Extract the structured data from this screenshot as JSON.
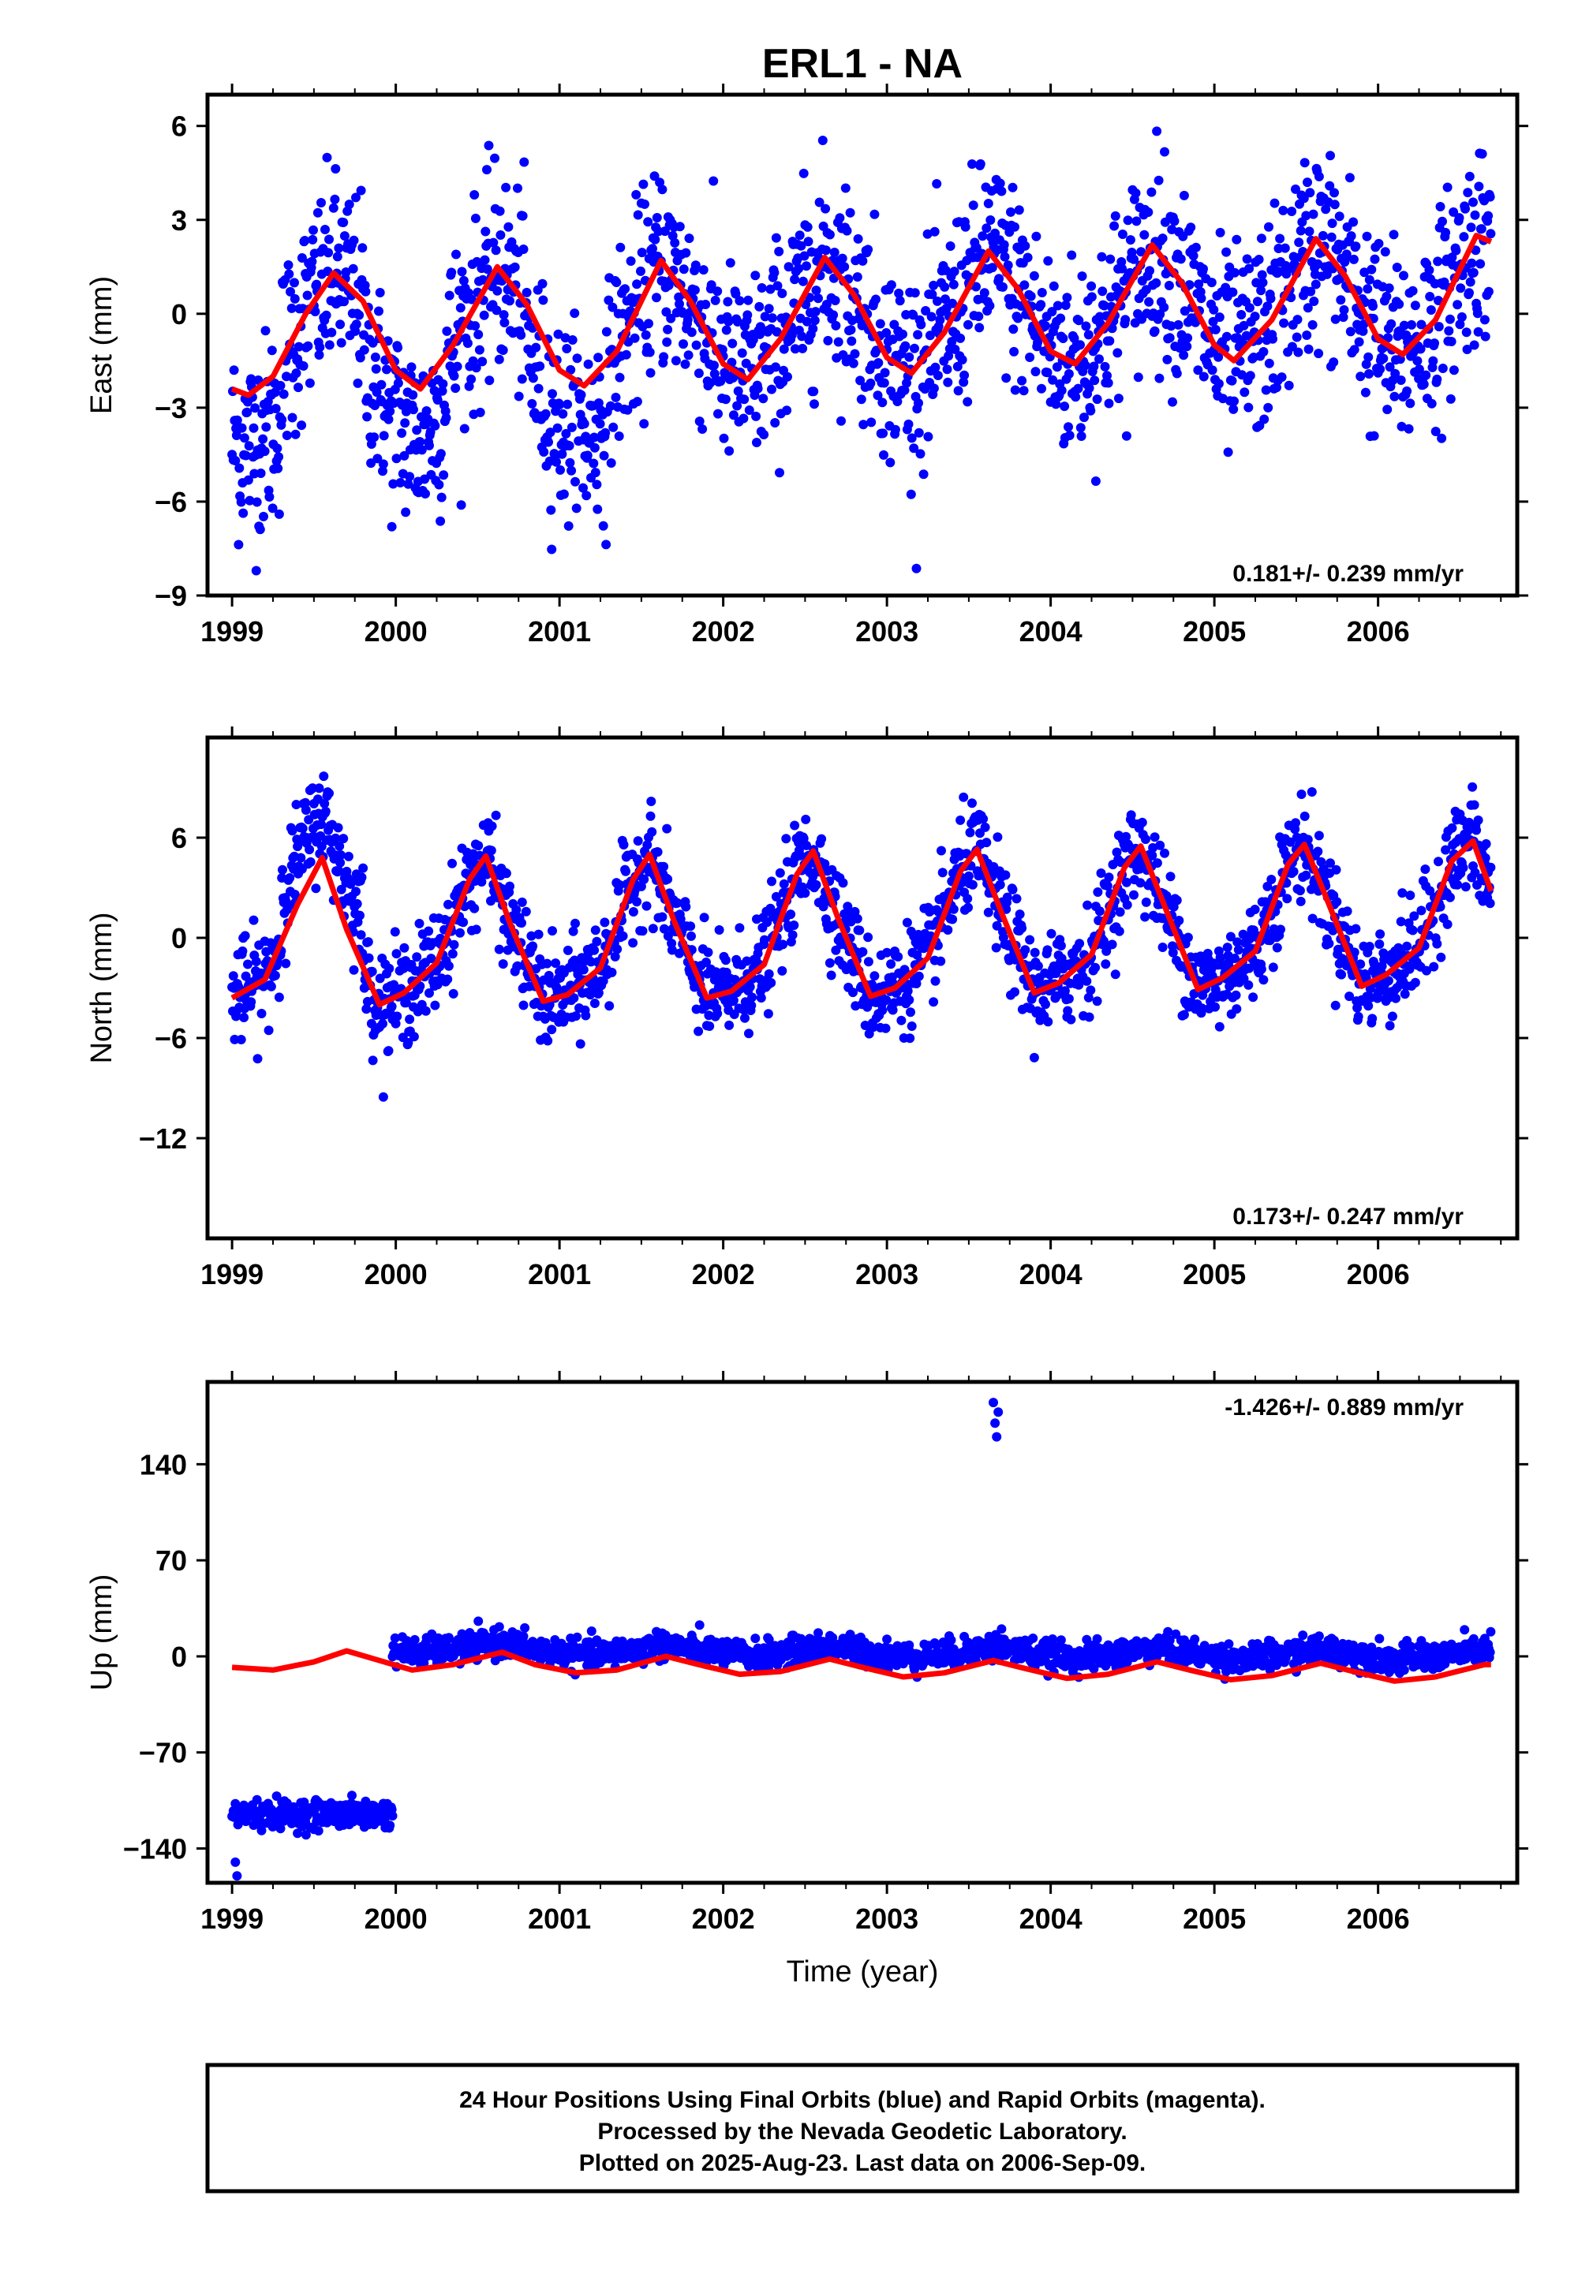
{
  "figure": {
    "title": "ERL1 - NA",
    "footer": {
      "lines": [
        "24 Hour Positions Using Final Orbits (blue) and Rapid Orbits (magenta).",
        "Processed by the Nevada Geodetic Laboratory.",
        "Plotted on 2025-Aug-23. Last data on 2006-Sep-09."
      ]
    },
    "colors": {
      "data_points": "#0000ff",
      "model_fit": "#ff0000",
      "frame": "#000000"
    }
  },
  "chart_data": [
    {
      "type": "scatter",
      "id": "east",
      "ylabel": "East (mm)",
      "xlabel": "",
      "xlim": [
        1998.85,
        2006.85
      ],
      "ylim": [
        -9,
        7
      ],
      "xticks": [
        "1999",
        "2000",
        "2001",
        "2002",
        "2003",
        "2004",
        "2005",
        "2006"
      ],
      "yticks": [
        "6",
        "3",
        "0",
        "−3",
        "−6",
        "−9"
      ],
      "ytick_values": [
        6,
        3,
        0,
        -3,
        -6,
        -9
      ],
      "rate": "0.181+/- 0.239 mm/yr",
      "rate_position": "bottom-right",
      "series": [
        {
          "kind": "points",
          "x_start": 1999.0,
          "x_end": 2006.69,
          "amplitude": 2.1,
          "phase_peak": 0.62,
          "noise": 1.6,
          "offset_pre_2001_2": -1.0
        },
        {
          "kind": "model",
          "x_start": 1999.0,
          "x_end": 2006.69,
          "model_points": [
            [
              1999.0,
              -2.4
            ],
            [
              1999.1,
              -2.6
            ],
            [
              1999.25,
              -2.0
            ],
            [
              1999.45,
              0.0
            ],
            [
              1999.62,
              1.3
            ],
            [
              1999.8,
              0.4
            ],
            [
              2000.0,
              -1.8
            ],
            [
              2000.15,
              -2.4
            ],
            [
              2000.35,
              -1.0
            ],
            [
              2000.62,
              1.5
            ],
            [
              2000.8,
              0.3
            ],
            [
              2001.0,
              -1.8
            ],
            [
              2001.15,
              -2.3
            ],
            [
              2001.35,
              -1.2
            ],
            [
              2001.62,
              1.7
            ],
            [
              2001.8,
              0.4
            ],
            [
              2002.0,
              -1.6
            ],
            [
              2002.15,
              -2.1
            ],
            [
              2002.35,
              -0.8
            ],
            [
              2002.62,
              1.8
            ],
            [
              2002.8,
              0.6
            ],
            [
              2003.0,
              -1.4
            ],
            [
              2003.15,
              -1.9
            ],
            [
              2003.35,
              -0.6
            ],
            [
              2003.62,
              2.0
            ],
            [
              2003.8,
              0.8
            ],
            [
              2004.0,
              -1.2
            ],
            [
              2004.15,
              -1.6
            ],
            [
              2004.35,
              -0.3
            ],
            [
              2004.62,
              2.2
            ],
            [
              2004.8,
              1.0
            ],
            [
              2005.0,
              -1.0
            ],
            [
              2005.12,
              -1.5
            ],
            [
              2005.35,
              -0.2
            ],
            [
              2005.62,
              2.4
            ],
            [
              2005.8,
              1.2
            ],
            [
              2006.0,
              -0.8
            ],
            [
              2006.15,
              -1.3
            ],
            [
              2006.35,
              -0.2
            ],
            [
              2006.6,
              2.5
            ],
            [
              2006.69,
              2.3
            ]
          ]
        }
      ]
    },
    {
      "type": "scatter",
      "id": "north",
      "ylabel": "North (mm)",
      "xlabel": "",
      "xlim": [
        1998.85,
        2006.85
      ],
      "ylim": [
        -18,
        12
      ],
      "xticks": [
        "1999",
        "2000",
        "2001",
        "2002",
        "2003",
        "2004",
        "2005",
        "2006"
      ],
      "yticks": [
        "6",
        "0",
        "−6",
        "−12"
      ],
      "ytick_values": [
        6,
        0,
        -6,
        -12
      ],
      "rate": "0.173+/- 0.247 mm/yr",
      "rate_position": "bottom-right",
      "series": [
        {
          "kind": "points",
          "x_start": 1999.0,
          "x_end": 2006.69,
          "amplitude": 4.5,
          "phase_peak": 0.55,
          "noise": 1.5
        },
        {
          "kind": "model",
          "x_start": 1999.0,
          "x_end": 2006.69,
          "model_points": [
            [
              1999.0,
              -3.6
            ],
            [
              1999.2,
              -2.5
            ],
            [
              1999.4,
              2.0
            ],
            [
              1999.55,
              4.8
            ],
            [
              1999.7,
              0.5
            ],
            [
              1999.9,
              -4.0
            ],
            [
              2000.05,
              -3.3
            ],
            [
              2000.25,
              -1.5
            ],
            [
              2000.45,
              3.5
            ],
            [
              2000.55,
              4.9
            ],
            [
              2000.7,
              0.8
            ],
            [
              2000.9,
              -3.8
            ],
            [
              2001.05,
              -3.4
            ],
            [
              2001.25,
              -1.8
            ],
            [
              2001.45,
              3.5
            ],
            [
              2001.55,
              5.0
            ],
            [
              2001.7,
              1.0
            ],
            [
              2001.9,
              -3.6
            ],
            [
              2002.05,
              -3.2
            ],
            [
              2002.25,
              -1.6
            ],
            [
              2002.45,
              3.8
            ],
            [
              2002.55,
              5.2
            ],
            [
              2002.7,
              1.2
            ],
            [
              2002.9,
              -3.5
            ],
            [
              2003.05,
              -3.0
            ],
            [
              2003.25,
              -1.2
            ],
            [
              2003.45,
              4.0
            ],
            [
              2003.55,
              5.3
            ],
            [
              2003.7,
              1.5
            ],
            [
              2003.9,
              -3.3
            ],
            [
              2004.05,
              -2.7
            ],
            [
              2004.25,
              -1.0
            ],
            [
              2004.45,
              4.2
            ],
            [
              2004.55,
              5.5
            ],
            [
              2004.7,
              1.8
            ],
            [
              2004.9,
              -3.1
            ],
            [
              2005.05,
              -2.4
            ],
            [
              2005.25,
              -0.8
            ],
            [
              2005.45,
              4.4
            ],
            [
              2005.55,
              5.6
            ],
            [
              2005.7,
              2.0
            ],
            [
              2005.9,
              -2.9
            ],
            [
              2006.05,
              -2.2
            ],
            [
              2006.25,
              -0.6
            ],
            [
              2006.45,
              4.6
            ],
            [
              2006.58,
              5.8
            ],
            [
              2006.69,
              2.8
            ]
          ]
        }
      ]
    },
    {
      "type": "scatter",
      "id": "up",
      "ylabel": "Up (mm)",
      "xlabel": "Time (year)",
      "xlim": [
        1998.85,
        2006.85
      ],
      "ylim": [
        -165,
        200
      ],
      "xticks": [
        "1999",
        "2000",
        "2001",
        "2002",
        "2003",
        "2004",
        "2005",
        "2006"
      ],
      "yticks": [
        "140",
        "70",
        "0",
        "−70",
        "−140"
      ],
      "ytick_values": [
        140,
        70,
        0,
        -70,
        -140
      ],
      "rate": "-1.426+/- 0.889 mm/yr",
      "rate_position": "top-right",
      "series": [
        {
          "kind": "points",
          "segments": [
            {
              "x_start": 1999.0,
              "x_end": 1999.98,
              "base": -115,
              "noise": 5
            },
            {
              "x_start": 1999.98,
              "x_end": 2006.69,
              "base": 5,
              "noise": 5
            }
          ],
          "outliers": [
            [
              2003.65,
              185
            ],
            [
              2003.66,
              170
            ],
            [
              2003.67,
              160
            ],
            [
              2003.68,
              178
            ],
            [
              2003.7,
              20
            ],
            [
              1999.02,
              -150
            ],
            [
              1999.03,
              -160
            ]
          ]
        },
        {
          "kind": "model",
          "x_start": 1999.0,
          "x_end": 2006.69,
          "model_points": [
            [
              1999.0,
              -8
            ],
            [
              1999.25,
              -10
            ],
            [
              1999.5,
              -4
            ],
            [
              1999.7,
              4
            ],
            [
              1999.9,
              -3
            ],
            [
              2000.1,
              -10
            ],
            [
              2000.35,
              -6
            ],
            [
              2000.65,
              3
            ],
            [
              2000.85,
              -6
            ],
            [
              2001.1,
              -12
            ],
            [
              2001.35,
              -10
            ],
            [
              2001.65,
              0
            ],
            [
              2001.85,
              -6
            ],
            [
              2002.1,
              -13
            ],
            [
              2002.35,
              -11
            ],
            [
              2002.65,
              -2
            ],
            [
              2002.85,
              -8
            ],
            [
              2003.1,
              -15
            ],
            [
              2003.35,
              -12
            ],
            [
              2003.65,
              -3
            ],
            [
              2003.85,
              -9
            ],
            [
              2004.1,
              -16
            ],
            [
              2004.35,
              -13
            ],
            [
              2004.65,
              -4
            ],
            [
              2004.85,
              -10
            ],
            [
              2005.1,
              -17
            ],
            [
              2005.35,
              -14
            ],
            [
              2005.65,
              -5
            ],
            [
              2005.85,
              -11
            ],
            [
              2006.1,
              -18
            ],
            [
              2006.35,
              -15
            ],
            [
              2006.65,
              -6
            ],
            [
              2006.69,
              -6
            ]
          ]
        }
      ]
    }
  ]
}
